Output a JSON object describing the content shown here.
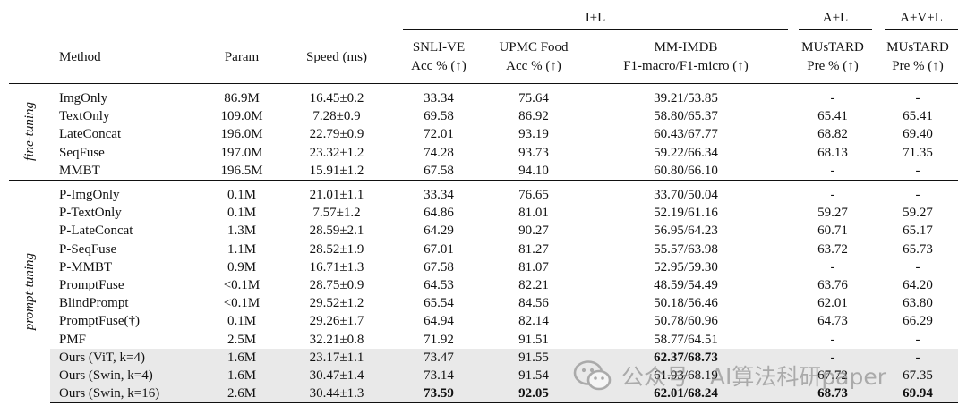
{
  "header": {
    "groups": {
      "il": "I+L",
      "al": "A+L",
      "avl": "A+V+L"
    },
    "method": "Method",
    "param": "Param",
    "speed": "Speed (ms)",
    "snli_1": "SNLI-VE",
    "snli_2": "Acc % (↑)",
    "upmc_1": "UPMC Food",
    "upmc_2": "Acc % (↑)",
    "mmimdb_1": "MM-IMDB",
    "mmimdb_2": "F1-macro/F1-micro (↑)",
    "must1_1": "MUsTARD",
    "must1_2": "Pre % (↑)",
    "must2_1": "MUsTARD",
    "must2_2": "Pre % (↑)"
  },
  "sections": [
    {
      "label": "fine-tuning",
      "rows": [
        {
          "method": "ImgOnly",
          "param": "86.9M",
          "speed": "16.45±0.2",
          "snli": "33.34",
          "upmc": "75.64",
          "mmimdb": "39.21/53.85",
          "must_al": "-",
          "must_avl": "-"
        },
        {
          "method": "TextOnly",
          "param": "109.0M",
          "speed": "7.28±0.9",
          "snli": "69.58",
          "upmc": "86.92",
          "mmimdb": "58.80/65.37",
          "must_al": "65.41",
          "must_avl": "65.41"
        },
        {
          "method": "LateConcat",
          "param": "196.0M",
          "speed": "22.79±0.9",
          "snli": "72.01",
          "upmc": "93.19",
          "mmimdb": "60.43/67.77",
          "must_al": "68.82",
          "must_avl": "69.40"
        },
        {
          "method": "SeqFuse",
          "param": "197.0M",
          "speed": "23.32±1.2",
          "snli": "74.28",
          "upmc": "93.73",
          "mmimdb": "59.22/66.34",
          "must_al": "68.13",
          "must_avl": "71.35"
        },
        {
          "method": "MMBT",
          "param": "196.5M",
          "speed": "15.91±1.2",
          "snli": "67.58",
          "upmc": "94.10",
          "mmimdb": "60.80/66.10",
          "must_al": "-",
          "must_avl": "-"
        }
      ]
    },
    {
      "label": "prompt-tuning",
      "rows": [
        {
          "method": "P-ImgOnly",
          "param": "0.1M",
          "speed": "21.01±1.1",
          "snli": "33.34",
          "upmc": "76.65",
          "mmimdb": "33.70/50.04",
          "must_al": "-",
          "must_avl": "-"
        },
        {
          "method": "P-TextOnly",
          "param": "0.1M",
          "speed": "7.57±1.2",
          "snli": "64.86",
          "upmc": "81.01",
          "mmimdb": "52.19/61.16",
          "must_al": "59.27",
          "must_avl": "59.27"
        },
        {
          "method": "P-LateConcat",
          "param": "1.3M",
          "speed": "28.59±2.1",
          "snli": "64.29",
          "upmc": "90.27",
          "mmimdb": "56.95/64.23",
          "must_al": "60.71",
          "must_avl": "65.17"
        },
        {
          "method": "P-SeqFuse",
          "param": "1.1M",
          "speed": "28.52±1.9",
          "snli": "67.01",
          "upmc": "81.27",
          "mmimdb": "55.57/63.98",
          "must_al": "63.72",
          "must_avl": "65.73"
        },
        {
          "method": "P-MMBT",
          "param": "0.9M",
          "speed": "16.71±1.3",
          "snli": "67.58",
          "upmc": "81.07",
          "mmimdb": "52.95/59.30",
          "must_al": "-",
          "must_avl": "-"
        },
        {
          "method": "PromptFuse",
          "param": "<0.1M",
          "speed": "28.75±0.9",
          "snli": "64.53",
          "upmc": "82.21",
          "mmimdb": "48.59/54.49",
          "must_al": "63.76",
          "must_avl": "64.20"
        },
        {
          "method": "BlindPrompt",
          "param": "<0.1M",
          "speed": "29.52±1.2",
          "snli": "65.54",
          "upmc": "84.56",
          "mmimdb": "50.18/56.46",
          "must_al": "62.01",
          "must_avl": "63.80"
        },
        {
          "method": "PromptFuse(†)",
          "param": "0.1M",
          "speed": "29.26±1.7",
          "snli": "64.94",
          "upmc": "82.14",
          "mmimdb": "50.78/60.96",
          "must_al": "64.73",
          "must_avl": "66.29"
        },
        {
          "method": "PMF",
          "param": "2.5M",
          "speed": "32.21±0.8",
          "snli": "71.92",
          "upmc": "91.51",
          "mmimdb": "58.77/64.51",
          "must_al": "-",
          "must_avl": "-"
        },
        {
          "method": "Ours (ViT, k=4)",
          "param": "1.6M",
          "speed": "23.17±1.1",
          "snli": "73.47",
          "upmc": "91.55",
          "mmimdb": "62.37/68.73",
          "must_al": "-",
          "must_avl": "-"
        },
        {
          "method": "Ours (Swin, k=4)",
          "param": "1.6M",
          "speed": "30.47±1.4",
          "snli": "73.14",
          "upmc": "91.54",
          "mmimdb": "61.93/68.19",
          "must_al": "67.72",
          "must_avl": "67.35"
        },
        {
          "method": "Ours (Swin, k=16)",
          "param": "2.6M",
          "speed": "30.44±1.3",
          "snli": "73.59",
          "upmc": "92.05",
          "mmimdb": "62.01/68.24",
          "must_al": "68.73",
          "must_avl": "69.94"
        }
      ]
    }
  ],
  "watermark": {
    "text": "公众号 · AI算法科研paper",
    "icon": "wechat-icon"
  }
}
